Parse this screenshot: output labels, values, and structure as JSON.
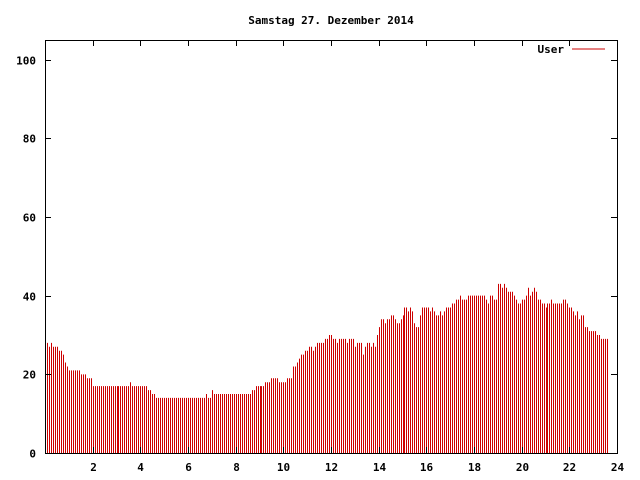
{
  "chart_data": {
    "type": "bar",
    "title": "Samstag 27. Dezember 2014",
    "xlabel": "",
    "ylabel": "",
    "xlim": [
      0,
      24
    ],
    "ylim": [
      0,
      105
    ],
    "x_ticks": [
      2,
      4,
      6,
      8,
      10,
      12,
      14,
      16,
      18,
      20,
      22,
      24
    ],
    "y_ticks": [
      0,
      20,
      40,
      60,
      80,
      100
    ],
    "x_tick_labels": [
      "2",
      "4",
      "6",
      "8",
      "10",
      "12",
      "14",
      "16",
      "18",
      "20",
      "22",
      "24"
    ],
    "y_tick_labels": [
      "0",
      "20",
      "40",
      "60",
      "80",
      "100"
    ],
    "grid": false,
    "legend": {
      "position": "top-right",
      "entries": [
        "User"
      ]
    },
    "color": "#cc0000",
    "series": [
      {
        "name": "User",
        "interval_minutes": 5,
        "values": [
          29,
          28,
          27,
          28,
          27,
          27,
          27,
          26,
          26,
          25,
          23,
          22,
          21,
          21,
          21,
          21,
          21,
          21,
          20,
          20,
          20,
          19,
          19,
          19,
          17,
          17,
          17,
          17,
          17,
          17,
          17,
          17,
          17,
          17,
          17,
          17,
          17,
          17,
          17,
          17,
          17,
          17,
          17,
          18,
          17,
          17,
          17,
          17,
          17,
          17,
          17,
          17,
          16,
          16,
          15,
          15,
          14,
          14,
          14,
          14,
          14,
          14,
          14,
          14,
          14,
          14,
          14,
          14,
          14,
          14,
          14,
          14,
          14,
          14,
          14,
          14,
          14,
          14,
          14,
          14,
          14,
          15,
          14,
          14,
          16,
          15,
          15,
          15,
          15,
          15,
          15,
          15,
          15,
          15,
          15,
          15,
          15,
          15,
          15,
          15,
          15,
          15,
          15,
          15,
          16,
          16,
          17,
          17,
          17,
          17,
          17,
          18,
          18,
          18,
          19,
          19,
          19,
          19,
          18,
          18,
          18,
          18,
          19,
          19,
          19,
          22,
          22,
          23,
          24,
          25,
          25,
          26,
          26,
          27,
          27,
          26,
          27,
          28,
          28,
          28,
          28,
          29,
          29,
          30,
          30,
          29,
          29,
          28,
          29,
          29,
          29,
          29,
          28,
          29,
          29,
          29,
          27,
          28,
          28,
          28,
          25,
          27,
          28,
          28,
          27,
          28,
          27,
          30,
          32,
          34,
          34,
          33,
          34,
          34,
          35,
          35,
          34,
          33,
          33,
          34,
          35,
          37,
          37,
          36,
          37,
          36,
          33,
          32,
          32,
          35,
          37,
          37,
          37,
          37,
          36,
          37,
          36,
          35,
          35,
          36,
          35,
          36,
          37,
          37,
          37,
          38,
          38,
          39,
          39,
          40,
          39,
          39,
          39,
          40,
          40,
          40,
          40,
          40,
          40,
          40,
          40,
          40,
          39,
          38,
          40,
          40,
          39,
          39,
          43,
          43,
          42,
          43,
          42,
          41,
          41,
          41,
          40,
          39,
          38,
          38,
          39,
          39,
          40,
          42,
          40,
          41,
          42,
          41,
          39,
          39,
          38,
          38,
          37,
          38,
          38,
          39,
          38,
          38,
          38,
          38,
          38,
          39,
          39,
          38,
          37,
          37,
          36,
          35,
          36,
          34,
          35,
          35,
          32,
          32,
          31,
          31,
          31,
          31,
          30,
          30,
          29,
          29,
          29,
          29
        ]
      }
    ]
  }
}
